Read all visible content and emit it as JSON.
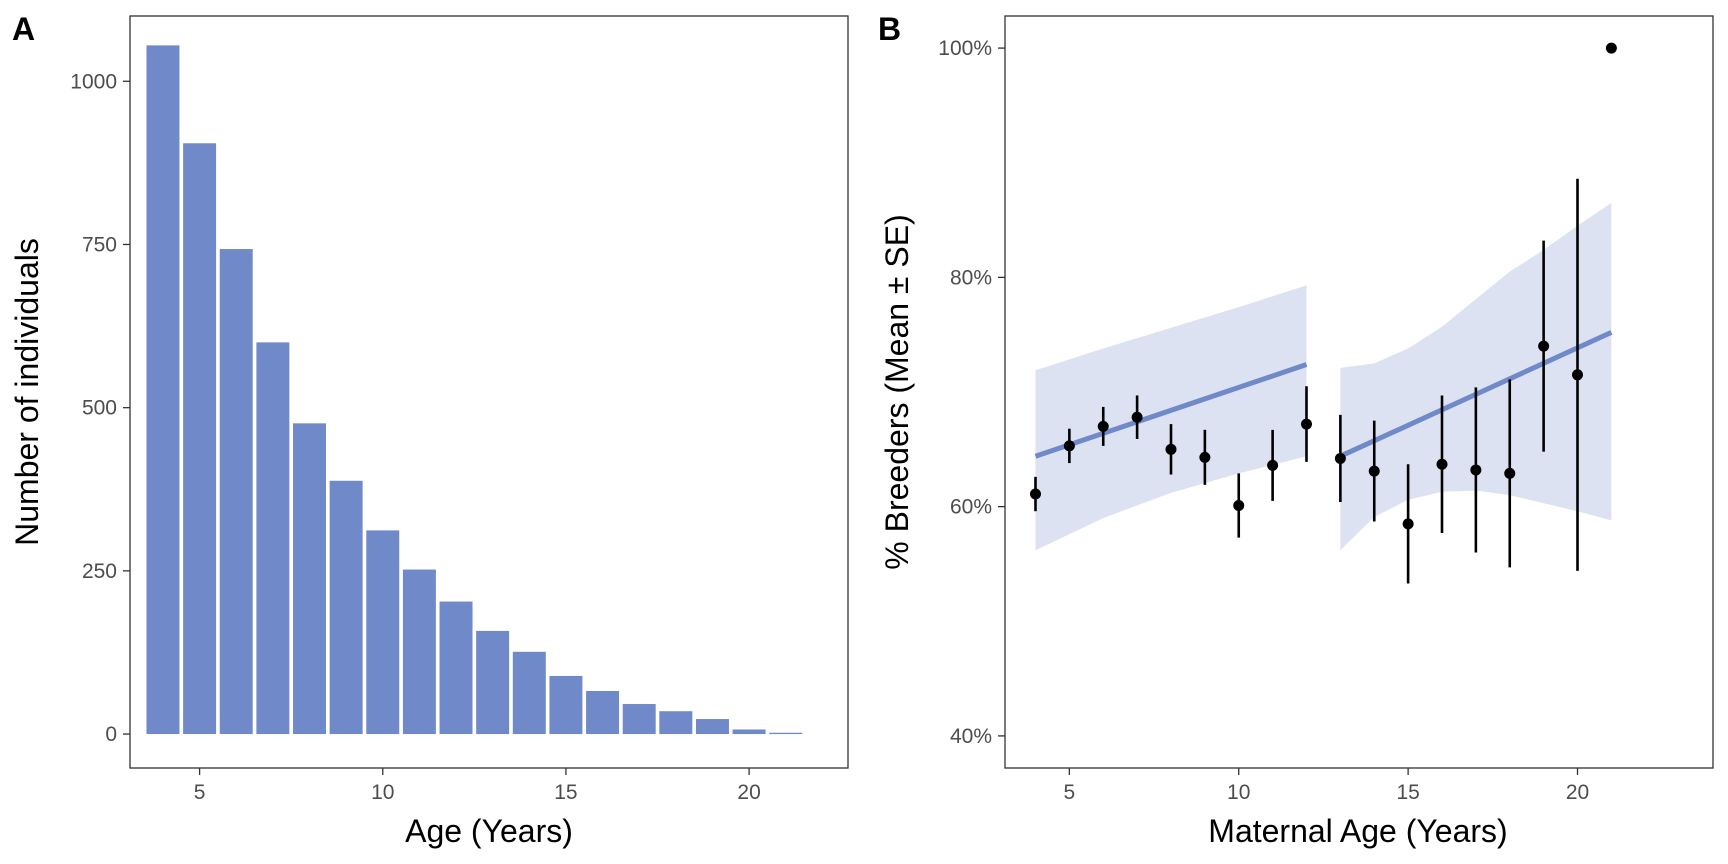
{
  "colors": {
    "bar": "#6f89c9",
    "trend_line": "#6f89c9",
    "ribbon": "#dde2f2",
    "points": "#000000",
    "panel_border": "#333333"
  },
  "chart_data": [
    {
      "panel_label": "A",
      "type": "bar",
      "xlabel": "Age (Years)",
      "ylabel": "Number of individuals",
      "xlim": [
        3.1,
        22.7
      ],
      "ylim": [
        -52,
        1100
      ],
      "x_ticks": [
        5,
        10,
        15,
        20
      ],
      "y_ticks": [
        0,
        250,
        500,
        750,
        1000
      ],
      "categories": [
        4,
        5,
        6,
        7,
        8,
        9,
        10,
        11,
        12,
        13,
        14,
        15,
        16,
        17,
        18,
        19,
        20,
        21
      ],
      "values": [
        1055,
        905,
        743,
        600,
        476,
        388,
        312,
        252,
        203,
        158,
        126,
        89,
        66,
        46,
        35,
        23,
        7,
        2
      ],
      "grid": false
    },
    {
      "panel_label": "B",
      "type": "scatter",
      "xlabel": "Maternal Age (Years)",
      "ylabel": "% Breeders (Mean ± SE)",
      "xlim": [
        3.1,
        24
      ],
      "ylim": [
        37.2,
        102.8
      ],
      "x_ticks": [
        5,
        10,
        15,
        20
      ],
      "y_ticks": [
        40,
        60,
        80,
        100
      ],
      "y_tick_labels": [
        "40%",
        "60%",
        "80%",
        "100%"
      ],
      "points": [
        {
          "x": 4,
          "y": 61.1,
          "lo": 59.6,
          "hi": 62.6
        },
        {
          "x": 5,
          "y": 65.3,
          "lo": 63.8,
          "hi": 66.8
        },
        {
          "x": 6,
          "y": 67.0,
          "lo": 65.3,
          "hi": 68.7
        },
        {
          "x": 7,
          "y": 67.8,
          "lo": 65.9,
          "hi": 69.7
        },
        {
          "x": 8,
          "y": 65.0,
          "lo": 62.8,
          "hi": 67.2
        },
        {
          "x": 9,
          "y": 64.3,
          "lo": 61.9,
          "hi": 66.7
        },
        {
          "x": 10,
          "y": 60.1,
          "lo": 57.3,
          "hi": 62.9
        },
        {
          "x": 11,
          "y": 63.6,
          "lo": 60.5,
          "hi": 66.7
        },
        {
          "x": 12,
          "y": 67.2,
          "lo": 63.9,
          "hi": 70.5
        },
        {
          "x": 13,
          "y": 64.2,
          "lo": 60.4,
          "hi": 68.0
        },
        {
          "x": 14,
          "y": 63.1,
          "lo": 58.7,
          "hi": 67.5
        },
        {
          "x": 15,
          "y": 58.5,
          "lo": 53.3,
          "hi": 63.7
        },
        {
          "x": 16,
          "y": 63.7,
          "lo": 57.7,
          "hi": 69.7
        },
        {
          "x": 17,
          "y": 63.2,
          "lo": 56.0,
          "hi": 70.4
        },
        {
          "x": 18,
          "y": 62.9,
          "lo": 54.7,
          "hi": 71.1
        },
        {
          "x": 19,
          "y": 74.0,
          "lo": 64.8,
          "hi": 83.2
        },
        {
          "x": 20,
          "y": 71.5,
          "lo": 54.4,
          "hi": 88.6
        },
        {
          "x": 21,
          "y": 100.0,
          "lo": 100.0,
          "hi": 100.0
        }
      ],
      "fits": [
        {
          "x": [
            4,
            12
          ],
          "y": [
            64.4,
            72.4
          ],
          "ribbon": {
            "x": [
              4,
              6,
              8,
              10,
              12
            ],
            "lower": [
              56.2,
              59.0,
              61.2,
              62.9,
              64.4
            ],
            "upper": [
              71.9,
              73.8,
              75.6,
              77.4,
              79.3
            ]
          }
        },
        {
          "x": [
            13,
            21
          ],
          "y": [
            64.4,
            75.2
          ],
          "ribbon": {
            "x": [
              13,
              14,
              15,
              16,
              17,
              18,
              19,
              20,
              21
            ],
            "lower": [
              56.2,
              59.1,
              60.6,
              61.3,
              61.4,
              61.0,
              60.3,
              59.6,
              58.8
            ],
            "upper": [
              72.1,
              72.5,
              73.8,
              75.7,
              78.1,
              80.5,
              82.4,
              84.5,
              86.5
            ]
          }
        }
      ],
      "grid": false
    }
  ]
}
